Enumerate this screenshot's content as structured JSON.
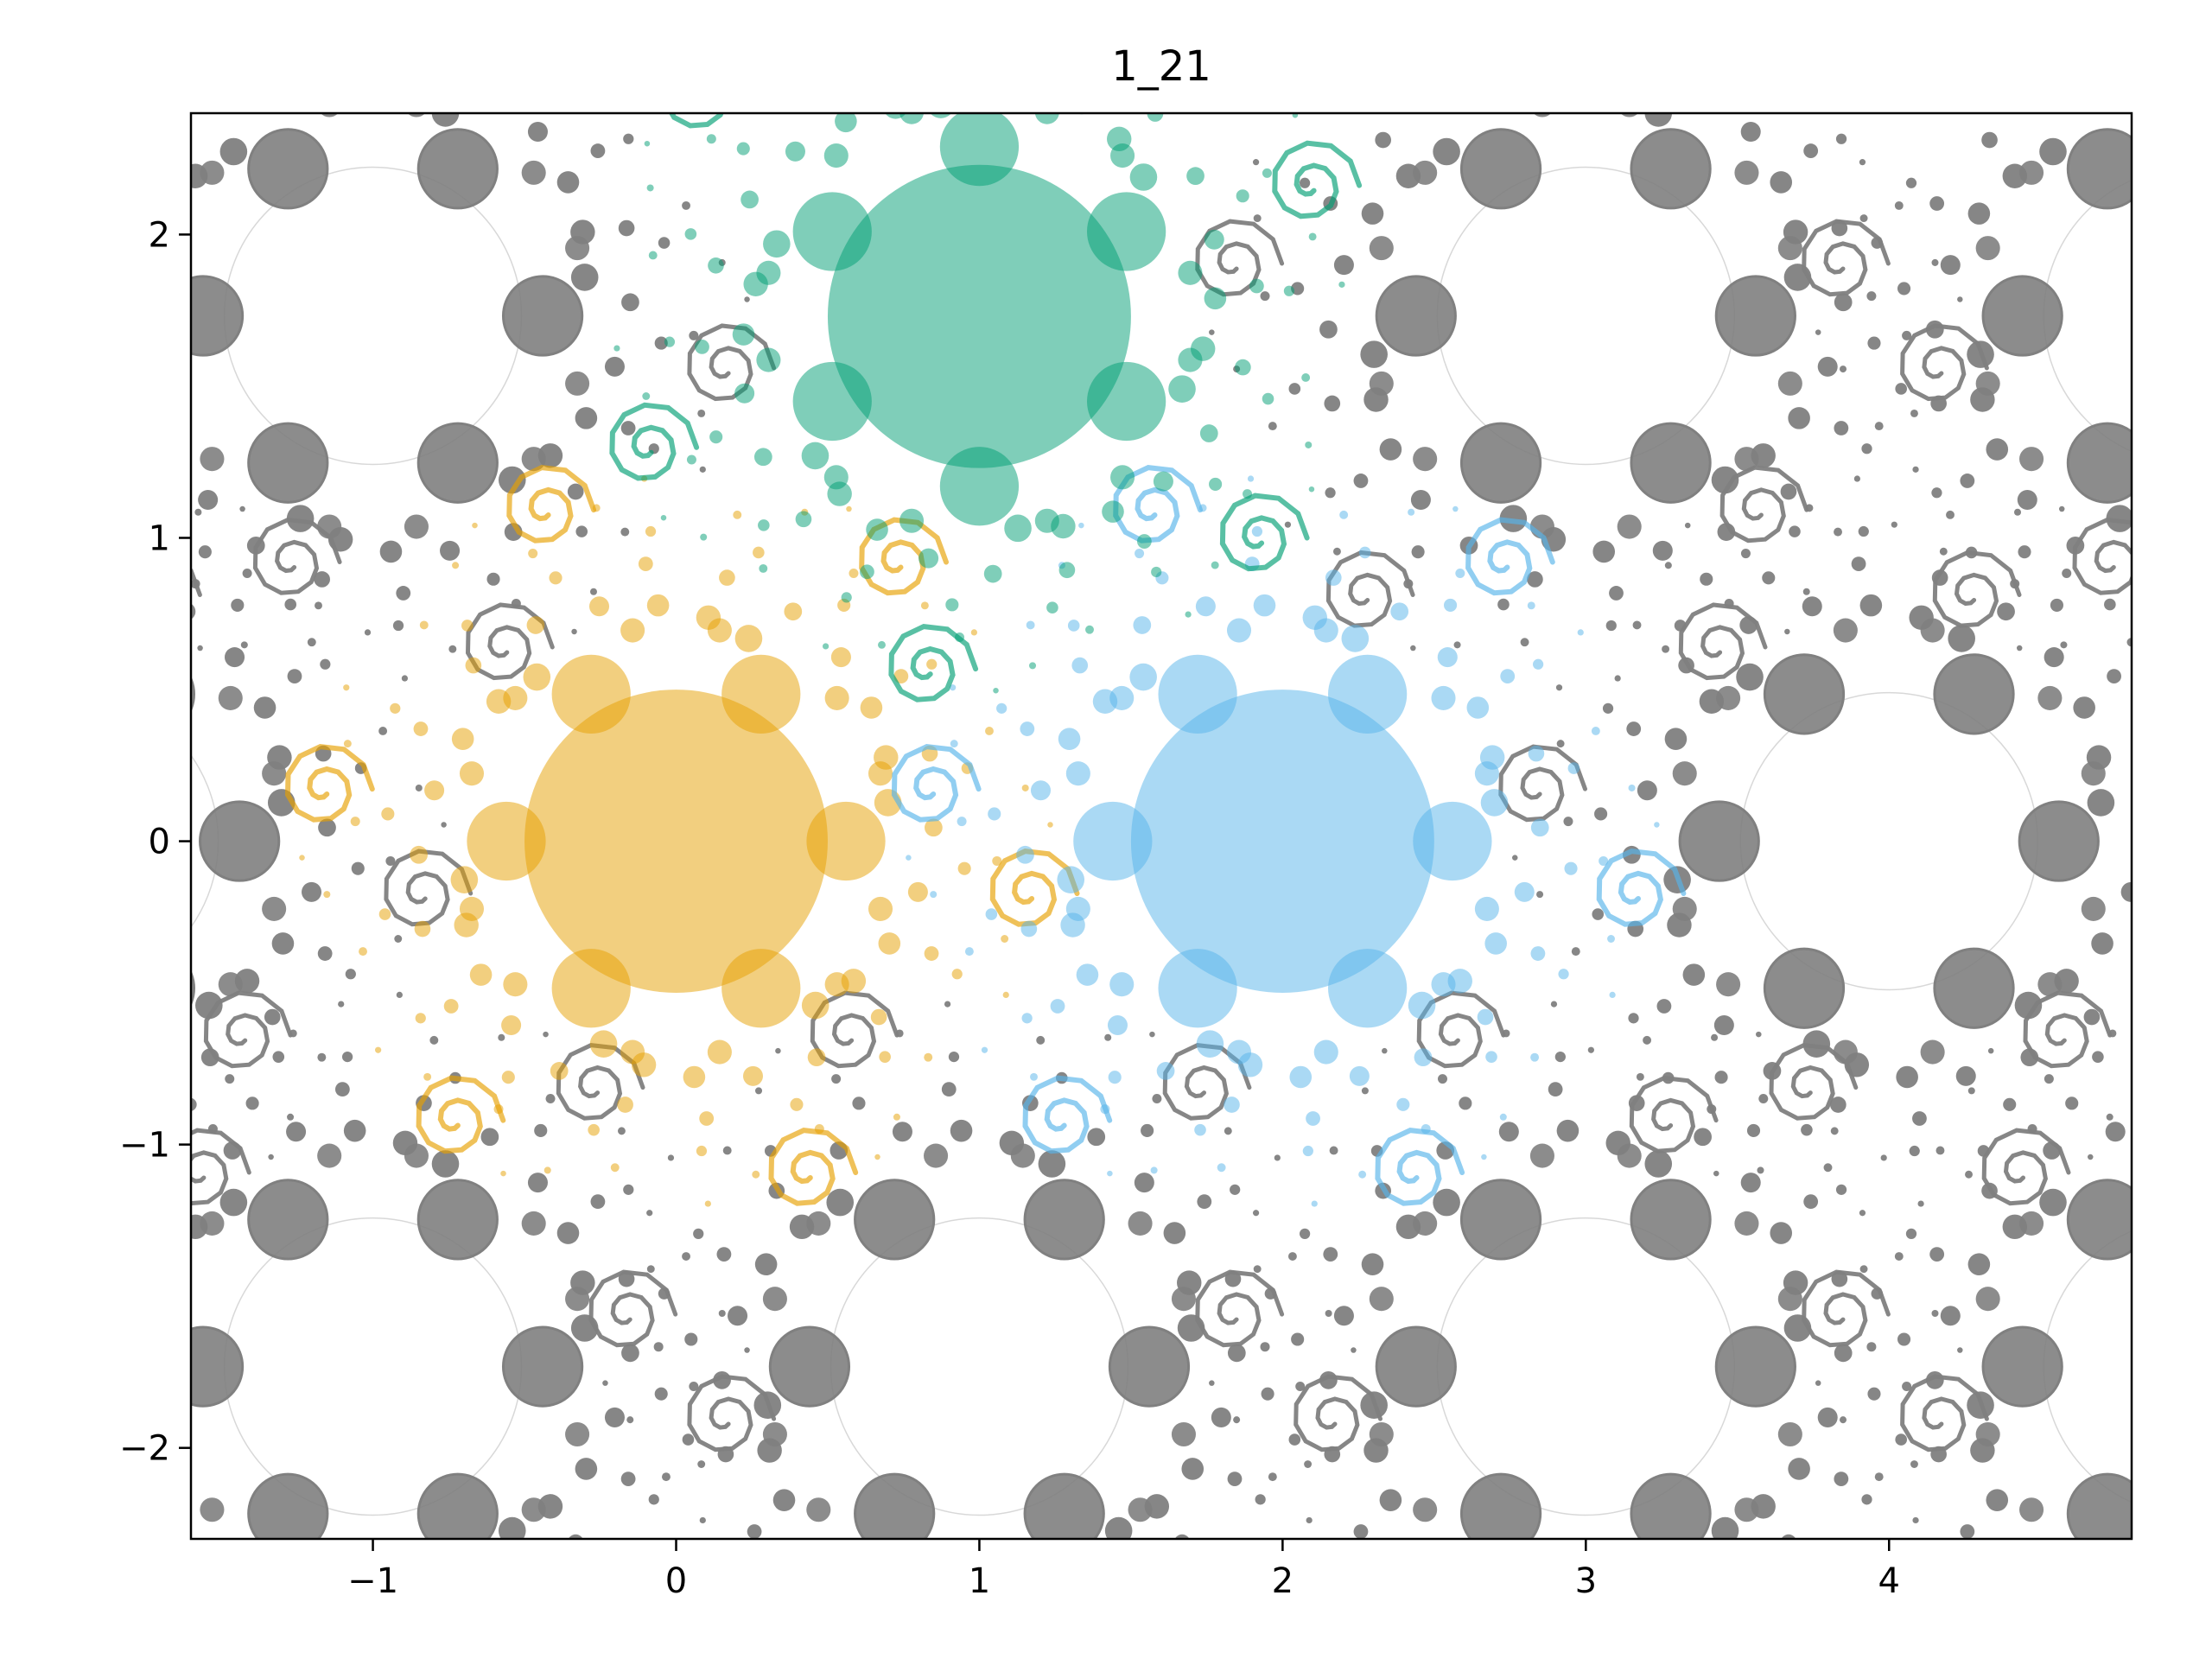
{
  "chart_data": {
    "type": "scatter",
    "title": "1_21",
    "xlabel": "",
    "ylabel": "",
    "xlim": [
      -1.6,
      4.8
    ],
    "ylim": [
      -2.3,
      2.4
    ],
    "x_ticks": [
      -1,
      0,
      1,
      2,
      3,
      4
    ],
    "x_tick_labels": [
      "−1",
      "0",
      "1",
      "2",
      "3",
      "4"
    ],
    "y_ticks": [
      -2,
      -1,
      0,
      1,
      2
    ],
    "y_tick_labels": [
      "−2",
      "−1",
      "0",
      "1",
      "2"
    ],
    "grid": false,
    "legend": "none",
    "series": [
      {
        "color": "#e69f00",
        "center": [
          0,
          0
        ],
        "main_radius": 0.5,
        "arm_angle_deg": 0
      },
      {
        "color": "#56b4e9",
        "center": [
          2,
          0
        ],
        "main_radius": 0.5,
        "arm_angle_deg": 180
      },
      {
        "color": "#009e73",
        "center": [
          1,
          1.73
        ],
        "main_radius": 0.5,
        "arm_angle_deg": 90
      }
    ],
    "background_pattern": {
      "color": "#808080",
      "lattice_basis": [
        [
          2,
          0
        ],
        [
          1,
          1.732
        ]
      ]
    }
  }
}
